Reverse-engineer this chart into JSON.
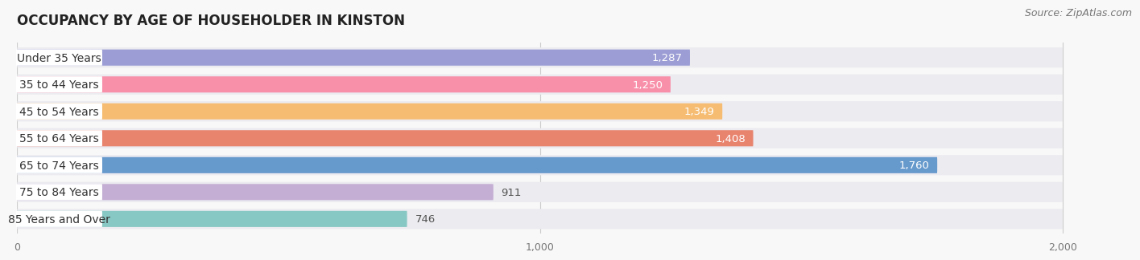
{
  "title": "OCCUPANCY BY AGE OF HOUSEHOLDER IN KINSTON",
  "source": "Source: ZipAtlas.com",
  "categories": [
    "Under 35 Years",
    "35 to 44 Years",
    "45 to 54 Years",
    "55 to 64 Years",
    "65 to 74 Years",
    "75 to 84 Years",
    "85 Years and Over"
  ],
  "values": [
    1287,
    1250,
    1349,
    1408,
    1760,
    911,
    746
  ],
  "bar_colors": [
    "#9b9dd4",
    "#f890aa",
    "#f5bc72",
    "#e8836e",
    "#6699cc",
    "#c4aed4",
    "#88c8c4"
  ],
  "bar_bg_color": "#ebebf0",
  "xlim_max": 2000,
  "xticks": [
    0,
    1000,
    2000
  ],
  "title_fontsize": 12,
  "source_fontsize": 9,
  "label_fontsize": 10,
  "value_fontsize": 9.5,
  "background_color": "#f8f8f8"
}
